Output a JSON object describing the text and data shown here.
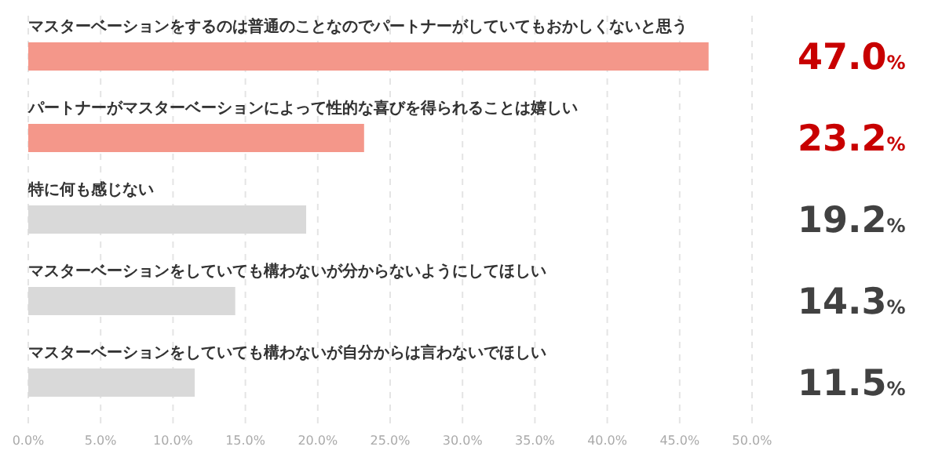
{
  "chart_data": {
    "type": "bar",
    "orientation": "horizontal",
    "categories": [
      "マスターベーションをするのは普通のことなのでパートナーがしていてもおかしくないと思う",
      "パートナーがマスターベーションによって性的な喜びを得られることは嬉しい",
      "特に何も感じない",
      "マスターベーションをしていても構わないが分からないようにしてほしい",
      "マスターベーションをしていても構わないが自分からは言わないでほしい"
    ],
    "values": [
      47.0,
      23.2,
      19.2,
      14.3,
      11.5
    ],
    "colors": [
      "#f4978a",
      "#f4978a",
      "#d9d9d9",
      "#d9d9d9",
      "#d9d9d9"
    ],
    "value_labels": [
      "47.0%",
      "23.2%",
      "19.2%",
      "14.3%",
      "11.5%"
    ],
    "xlim": [
      0,
      50
    ],
    "xticks": [
      {
        "value": 0,
        "label": "0.0%"
      },
      {
        "value": 5,
        "label": "5.0%"
      },
      {
        "value": 10,
        "label": "10.0%"
      },
      {
        "value": 15,
        "label": "15.0%"
      },
      {
        "value": 20,
        "label": "20.0%"
      },
      {
        "value": 25,
        "label": "25.0%"
      },
      {
        "value": 30,
        "label": "30.0%"
      },
      {
        "value": 35,
        "label": "35.0%"
      },
      {
        "value": 40,
        "label": "40.0%"
      },
      {
        "value": 45,
        "label": "45.0%"
      },
      {
        "value": 50,
        "label": "50.0%"
      }
    ],
    "grid": "x",
    "legend": false
  }
}
